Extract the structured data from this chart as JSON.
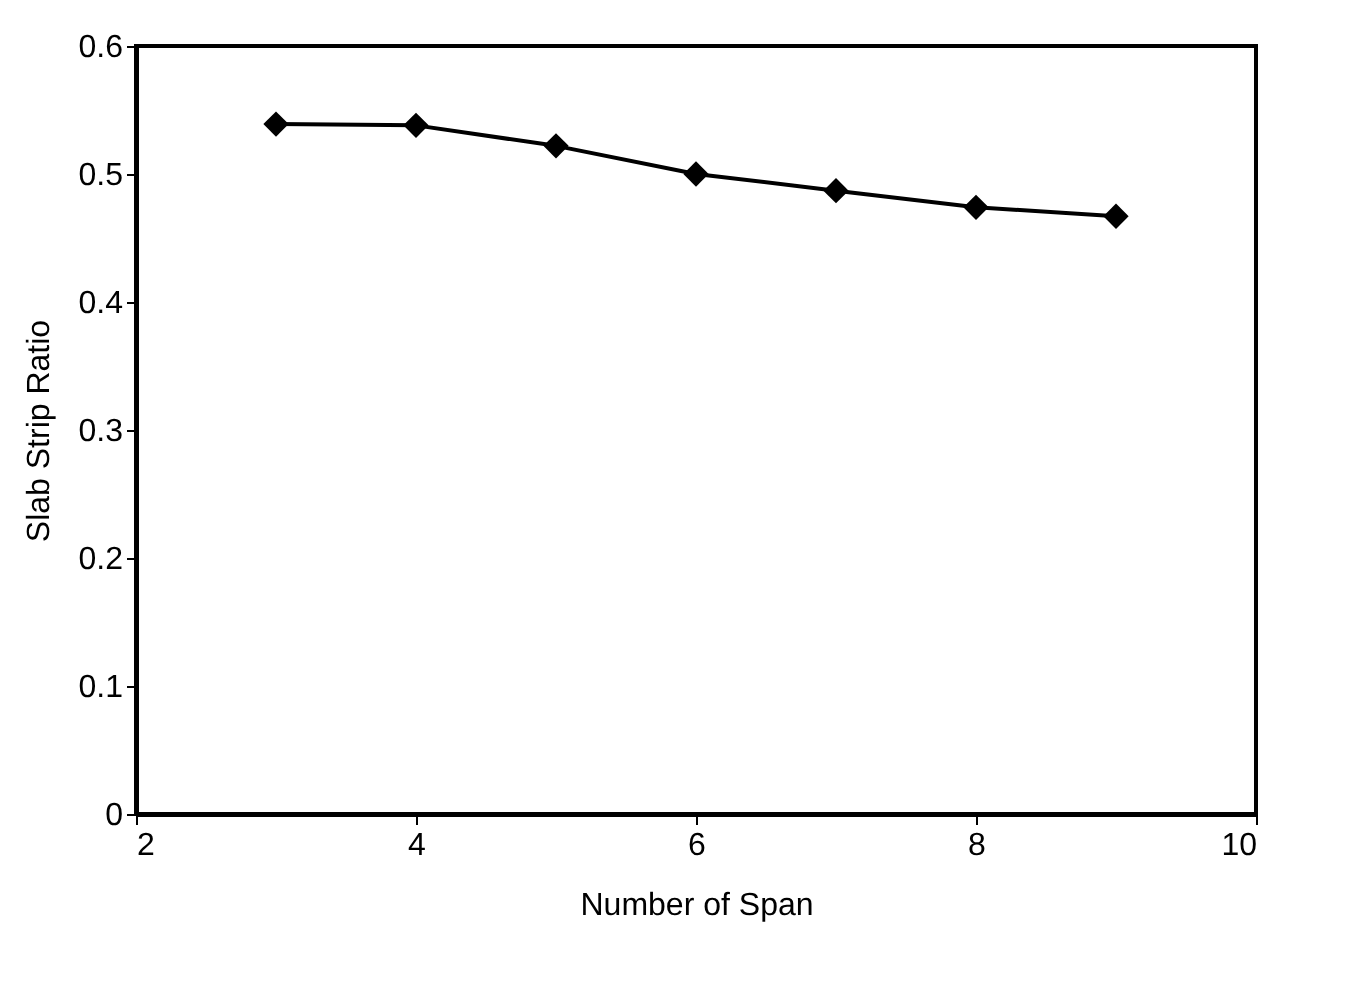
{
  "chart_data": {
    "type": "line",
    "xlabel": "Number of Span",
    "ylabel": "Slab Strip Ratio",
    "x": [
      3,
      4,
      5,
      6,
      7,
      8,
      9
    ],
    "series": [
      {
        "color": "#000000",
        "values": [
          0.539,
          0.538,
          0.522,
          0.5,
          0.487,
          0.474,
          0.467
        ]
      }
    ],
    "xlim": [
      2,
      10
    ],
    "xticks": [
      2,
      4,
      6,
      8,
      10
    ],
    "ylim": [
      0,
      0.6
    ],
    "yticks": [
      0,
      0.1,
      0.2,
      0.3,
      0.4,
      0.5,
      0.6
    ],
    "marker": "diamond",
    "line_style": "solid",
    "grid": false,
    "legend": false
  }
}
